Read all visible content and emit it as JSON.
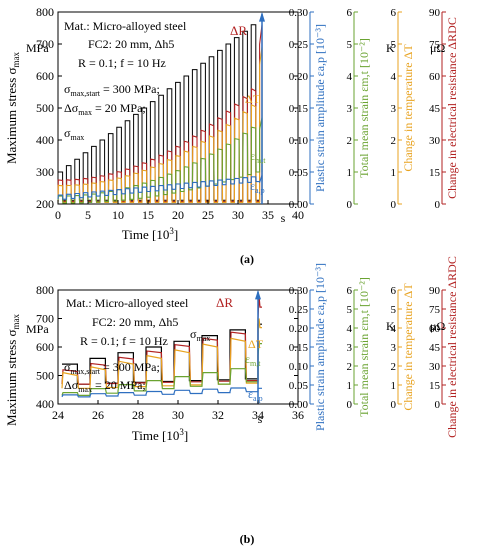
{
  "chart_data": [
    {
      "type": "line",
      "panel_label": "(a)",
      "xlabel": "Time [10³]",
      "x_end_label": "s",
      "xlim": [
        0,
        40
      ],
      "x_ticks": [
        0,
        5,
        10,
        15,
        20,
        25,
        30,
        35,
        40
      ],
      "ylim": [
        200,
        800
      ],
      "y_ticks": [
        200,
        300,
        400,
        500,
        600,
        700,
        800
      ],
      "left_axis": {
        "label": "Maximum stress σmax",
        "unit": "MPa"
      },
      "right_axes": [
        {
          "label": "Plastic strain amplitude εa,p [10⁻³]",
          "unit": "",
          "ticks": [
            0.0,
            0.05,
            0.1,
            0.15,
            0.2,
            0.25,
            0.3
          ],
          "color": "#2e6fc0"
        },
        {
          "label": "Total mean strain εm,t [10⁻²]",
          "unit": "",
          "ticks": [
            0,
            1,
            2,
            3,
            4,
            5,
            6
          ],
          "color": "#6aa331"
        },
        {
          "label": "Change in temperature ΔT",
          "unit": "K",
          "ticks": [
            0,
            1,
            2,
            3,
            4,
            5,
            6
          ],
          "color": "#e8a320"
        },
        {
          "label": "Change in electrical resistance ΔRDC",
          "unit": "μΩ",
          "ticks": [
            0,
            15,
            30,
            45,
            60,
            75,
            90
          ],
          "color": "#b22222"
        }
      ],
      "annotation": {
        "lines": [
          "Mat.: Micro-alloyed steel",
          "FC2: 20 mm, Δh5",
          "R = 0.1; f = 10 Hz",
          "σmax,start = 300 MPa;",
          "Δσmax = 20 MPa;"
        ]
      },
      "curve_labels": [
        {
          "text": "σmax",
          "color": "#000000"
        },
        {
          "text": "ΔR",
          "color": "#b22222"
        },
        {
          "text": "ΔT",
          "color": "#e8a320"
        },
        {
          "text": "εm,t",
          "color": "#6aa331"
        },
        {
          "text": "εa,p",
          "color": "#2e6fc0"
        }
      ],
      "step_length": 1.4,
      "failure_time": 34.0,
      "series": [
        {
          "name": "σmax",
          "color": "#000000",
          "start": 300,
          "increment": 20,
          "steps": 24
        },
        {
          "name": "ΔR",
          "color": "#b22222",
          "low": 208,
          "high_start": 275,
          "high_end": 560,
          "final": 760
        },
        {
          "name": "ΔT",
          "color": "#e8a320",
          "low": 205,
          "high_start": 258,
          "high_end": 510,
          "final": 690
        },
        {
          "name": "εm,t",
          "color": "#6aa331",
          "low_start": 203,
          "low_end": 300,
          "high_start": 225,
          "high_end": 440,
          "final": 470
        },
        {
          "name": "εa,p",
          "color": "#2e6fc0",
          "low_start": 215,
          "low_end": 270,
          "high_start": 228,
          "high_end": 285,
          "final": 290
        }
      ]
    },
    {
      "type": "line",
      "panel_label": "(b)",
      "xlabel": "Time [10³]",
      "x_end_label": "s",
      "xlim": [
        24,
        36
      ],
      "x_ticks": [
        24,
        26,
        28,
        30,
        32,
        34,
        36
      ],
      "ylim": [
        400,
        800
      ],
      "y_ticks": [
        400,
        500,
        600,
        700,
        800
      ],
      "left_axis": {
        "label": "Maximum stress σmax",
        "unit": "MPa"
      },
      "right_axes": [
        {
          "label": "Plastic strain amplitude εa,p [10⁻³]",
          "unit": "",
          "ticks": [
            0.0,
            0.05,
            0.1,
            0.15,
            0.2,
            0.25,
            0.3
          ],
          "color": "#2e6fc0"
        },
        {
          "label": "Total mean strain εm,t [10⁻²]",
          "unit": "",
          "ticks": [
            0,
            1,
            2,
            3,
            4,
            5,
            6
          ],
          "color": "#6aa331"
        },
        {
          "label": "Change in temperature ΔT",
          "unit": "K",
          "ticks": [
            0,
            1,
            2,
            3,
            4,
            5,
            6
          ],
          "color": "#e8a320"
        },
        {
          "label": "Change in electrical resistance ΔRDC",
          "unit": "μΩ",
          "ticks": [
            0,
            15,
            30,
            45,
            60,
            75,
            90
          ],
          "color": "#b22222"
        }
      ],
      "annotation": {
        "lines": [
          "Mat.: Micro-alloyed steel",
          "FC2: 20 mm, Δh5",
          "R = 0.1; f = 10 Hz",
          "σmax,start = 300 MPa;",
          "Δσmax = 20 MPa;"
        ]
      },
      "curve_labels": [
        {
          "text": "ΔR",
          "color": "#b22222"
        },
        {
          "text": "σmax",
          "color": "#000000"
        },
        {
          "text": "ΔT",
          "color": "#e8a320"
        },
        {
          "text": "εm,t",
          "color": "#6aa331"
        },
        {
          "text": "εa,p",
          "color": "#2e6fc0"
        }
      ],
      "step_length": 1.4,
      "failure_time": 34.0,
      "series": [
        {
          "name": "σmax",
          "color": "#000000",
          "start_time": 24.2,
          "start": 540,
          "increment": 20
        },
        {
          "name": "ΔR",
          "color": "#b22222"
        },
        {
          "name": "ΔT",
          "color": "#e8a320"
        },
        {
          "name": "εm,t",
          "color": "#6aa331"
        },
        {
          "name": "εa,p",
          "color": "#2e6fc0"
        }
      ]
    }
  ]
}
